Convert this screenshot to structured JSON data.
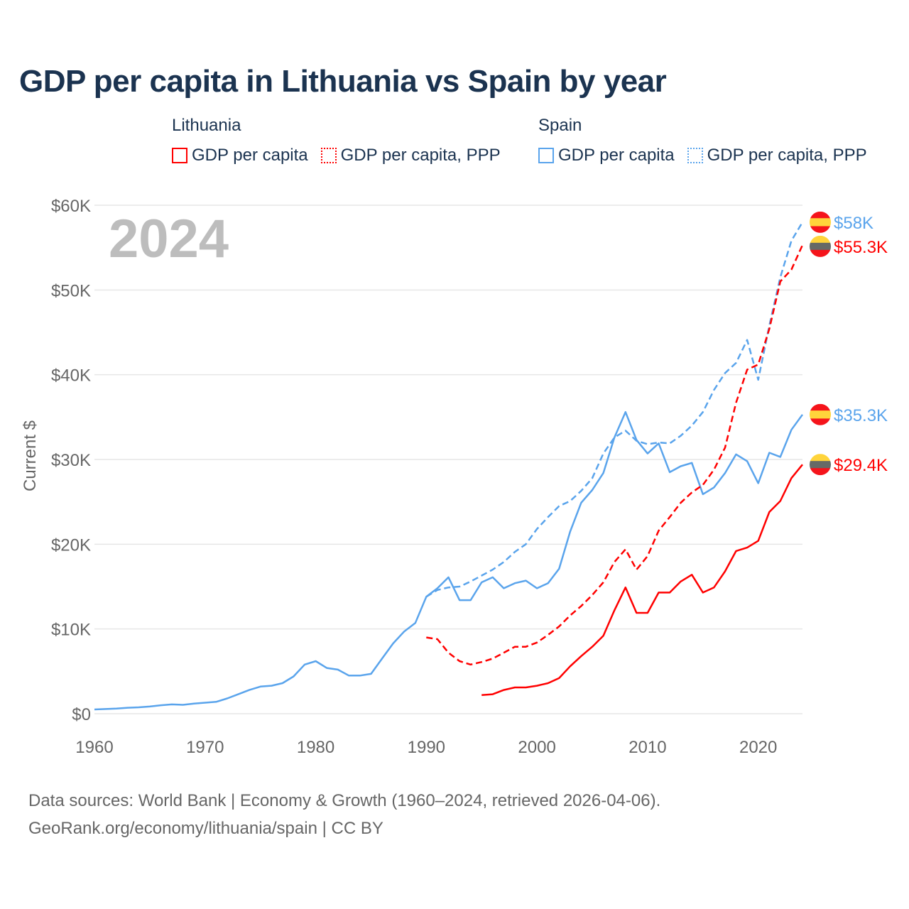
{
  "title": "GDP per capita in Lithuania vs Spain by year",
  "legend": {
    "groups": [
      {
        "name": "Lithuania",
        "items": [
          {
            "label": "GDP per capita",
            "style": "solid",
            "color": "#ff0000"
          },
          {
            "label": "GDP per capita, PPP",
            "style": "dotted",
            "color": "#ff0000"
          }
        ]
      },
      {
        "name": "Spain",
        "items": [
          {
            "label": "GDP per capita",
            "style": "solid",
            "color": "#5aa4ec"
          },
          {
            "label": "GDP per capita, PPP",
            "style": "dotted",
            "color": "#5aa4ec"
          }
        ]
      }
    ]
  },
  "source": {
    "line1": "Data sources: World Bank | Economy & Growth (1960–2024, retrieved 2026-04-06).",
    "line2": "GeoRank.org/economy/lithuania/spain | CC BY"
  },
  "chart_data": {
    "type": "line",
    "year_label": "2024",
    "ylabel": "Current $",
    "xlim": [
      1960,
      2024
    ],
    "ylim": [
      0,
      60000
    ],
    "x_ticks": [
      "1960",
      "1970",
      "1980",
      "1990",
      "2000",
      "2010",
      "2020"
    ],
    "y_ticks": [
      "$0",
      "$10K",
      "$20K",
      "$30K",
      "$40K",
      "$50K",
      "$60K"
    ],
    "grid": true,
    "series": [
      {
        "name": "Spain GDP per capita",
        "country": "Spain",
        "color": "#5aa4ec",
        "dashed": false,
        "start": 1960,
        "end_label": "$35.3K",
        "values_k": [
          0.5,
          0.55,
          0.6,
          0.7,
          0.75,
          0.85,
          1.0,
          1.1,
          1.05,
          1.2,
          1.3,
          1.4,
          1.8,
          2.3,
          2.8,
          3.2,
          3.3,
          3.6,
          4.4,
          5.8,
          6.2,
          5.4,
          5.2,
          4.5,
          4.5,
          4.7,
          6.5,
          8.3,
          9.7,
          10.7,
          13.8,
          14.8,
          16.1,
          13.4,
          13.4,
          15.5,
          16.1,
          14.8,
          15.4,
          15.7,
          14.8,
          15.4,
          17.1,
          21.5,
          24.9,
          26.4,
          28.4,
          32.6,
          35.6,
          32.3,
          30.7,
          31.9,
          28.5,
          29.2,
          29.6,
          25.9,
          26.7,
          28.4,
          30.6,
          29.8,
          27.2,
          30.8,
          30.3,
          33.5,
          35.3
        ]
      },
      {
        "name": "Spain GDP per capita, PPP",
        "country": "Spain",
        "color": "#5aa4ec",
        "dashed": true,
        "start": 1990,
        "end_label": "$58K",
        "values_k": [
          13.8,
          14.6,
          14.9,
          15.0,
          15.6,
          16.3,
          17.0,
          17.9,
          19.1,
          20.0,
          21.8,
          23.2,
          24.5,
          25.1,
          26.3,
          27.8,
          30.7,
          32.6,
          33.4,
          32.2,
          31.8,
          32.0,
          31.9,
          32.8,
          34.0,
          35.6,
          38.2,
          40.2,
          41.4,
          44.1,
          39.4,
          45.8,
          51.5,
          55.8,
          58.0
        ]
      },
      {
        "name": "Lithuania GDP per capita",
        "country": "Lithuania",
        "color": "#ff0000",
        "dashed": false,
        "start": 1995,
        "end_label": "$29.4K",
        "values_k": [
          2.2,
          2.3,
          2.8,
          3.1,
          3.1,
          3.3,
          3.6,
          4.2,
          5.6,
          6.8,
          7.9,
          9.2,
          12.2,
          14.9,
          11.9,
          11.9,
          14.3,
          14.3,
          15.6,
          16.4,
          14.3,
          14.9,
          16.8,
          19.2,
          19.6,
          20.4,
          23.8,
          25.1,
          27.8,
          29.4
        ]
      },
      {
        "name": "Lithuania GDP per capita, PPP",
        "country": "Lithuania",
        "color": "#ff0000",
        "dashed": true,
        "start": 1990,
        "end_label": "$55.3K",
        "values_k": [
          9.0,
          8.8,
          7.2,
          6.2,
          5.8,
          6.1,
          6.5,
          7.2,
          7.9,
          7.9,
          8.4,
          9.3,
          10.3,
          11.6,
          12.7,
          14.0,
          15.5,
          17.9,
          19.4,
          17.0,
          18.6,
          21.6,
          23.2,
          24.9,
          26.1,
          27.0,
          28.8,
          31.4,
          36.7,
          40.6,
          41.2,
          45.4,
          51.0,
          52.4,
          55.3
        ]
      }
    ]
  }
}
